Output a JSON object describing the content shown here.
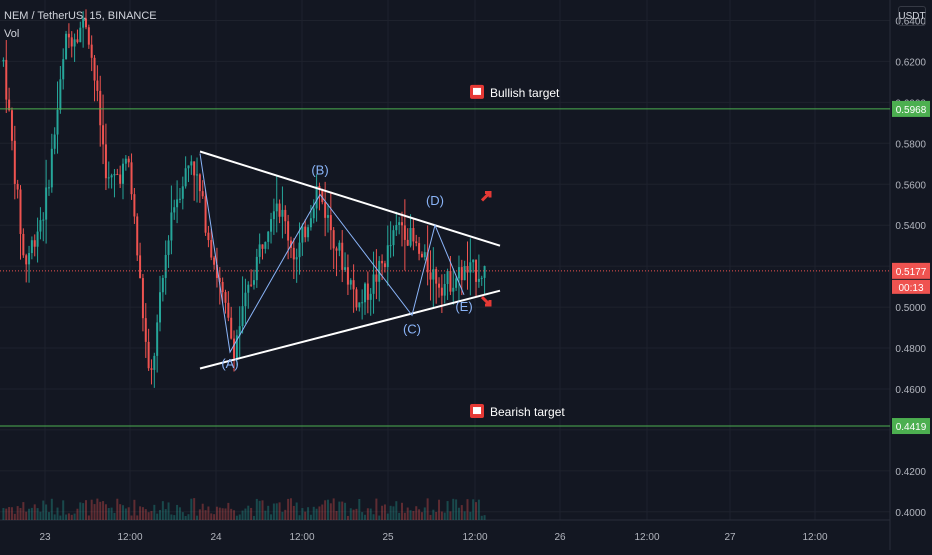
{
  "header": {
    "symbol_line": "NEM / TetherUS, 15, BINANCE",
    "indicator": "Vol",
    "currency": "USDT"
  },
  "chart_data": {
    "type": "line",
    "title": "NEM / TetherUS, 15, BINANCE",
    "ylim": [
      0.396,
      0.65
    ],
    "yticks": [
      "0.6400",
      "0.6200",
      "0.6000",
      "0.5800",
      "0.5600",
      "0.5400",
      "0.5200",
      "0.5000",
      "0.4800",
      "0.4600",
      "0.4400",
      "0.4200",
      "0.4000"
    ],
    "xticks": [
      "23",
      "12:00",
      "24",
      "12:00",
      "25",
      "12:00",
      "26",
      "12:00",
      "27",
      "12:00"
    ],
    "price": [
      0.62,
      0.52,
      0.55,
      0.63,
      0.64,
      0.56,
      0.57,
      0.46,
      0.546,
      0.574,
      0.526,
      0.48,
      0.519,
      0.555,
      0.523,
      0.559,
      0.528,
      0.501,
      0.518,
      0.542,
      0.523,
      0.511,
      0.517,
      0.5177
    ],
    "triangle": {
      "upper": [
        [
          0.576
        ],
        [
          0.53
        ]
      ],
      "lower": [
        [
          0.47
        ],
        [
          0.508
        ]
      ]
    },
    "waves": [
      {
        "label": "(A)",
        "value": 0.478
      },
      {
        "label": "(B)",
        "value": 0.555
      },
      {
        "label": "(C)",
        "value": 0.496
      },
      {
        "label": "(D)",
        "value": 0.54
      },
      {
        "label": "(E)",
        "value": 0.506
      }
    ],
    "levels": [
      {
        "label": "Bullish target",
        "value": "0.5968",
        "color": "#4caf50"
      },
      {
        "label": "Bearish target",
        "value": "0.4419",
        "color": "#4caf50"
      }
    ],
    "last_price": "0.5177",
    "countdown": "00:13",
    "colors": {
      "up": "#26a69a",
      "down": "#ef5350",
      "background": "#131722",
      "flag": "#e53935"
    }
  }
}
